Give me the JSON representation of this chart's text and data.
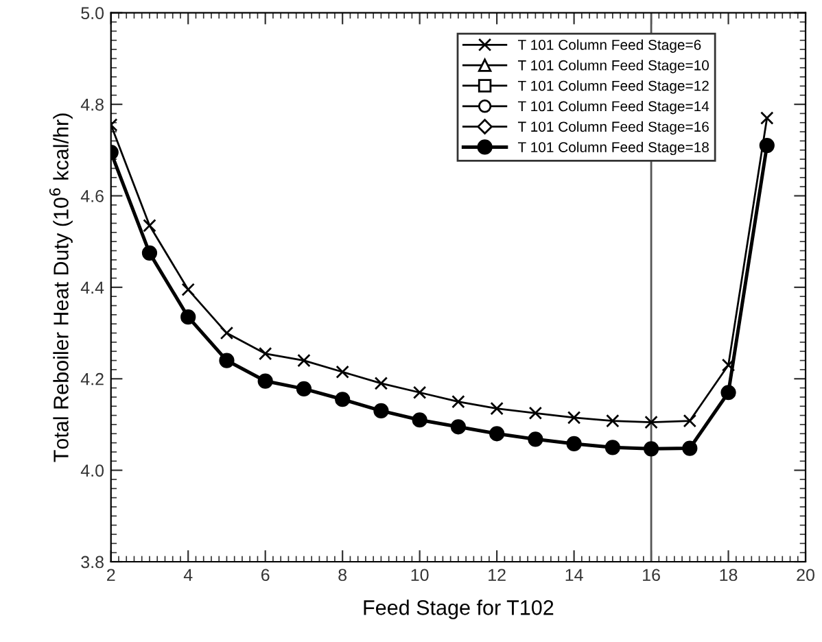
{
  "chart_data": {
    "type": "line",
    "xlabel": "Feed Stage for T102",
    "ylabel": "Total Reboiler Heat Duty (10$^{6}$ kcal/hr)",
    "x": [
      2,
      3,
      4,
      5,
      6,
      7,
      8,
      9,
      10,
      11,
      12,
      13,
      14,
      15,
      16,
      17,
      18,
      19
    ],
    "series": [
      {
        "name": "T 101 Column Feed Stage=6",
        "color": "#000000",
        "marker": "cross",
        "values": [
          4.755,
          4.535,
          4.395,
          4.3,
          4.255,
          4.24,
          4.215,
          4.19,
          4.17,
          4.15,
          4.135,
          4.125,
          4.115,
          4.108,
          4.105,
          4.108,
          4.23,
          4.77
        ]
      },
      {
        "name": "T 101 Column Feed Stage=10",
        "color": "#000000",
        "marker": "triangle",
        "values": [
          null,
          null,
          null,
          null,
          null,
          null,
          null,
          null,
          null,
          null,
          null,
          null,
          null,
          null,
          null,
          null,
          null,
          null
        ]
      },
      {
        "name": "T 101 Column Feed Stage=12",
        "color": "#000000",
        "marker": "square",
        "values": [
          null,
          null,
          null,
          null,
          null,
          null,
          null,
          null,
          null,
          null,
          null,
          null,
          null,
          null,
          null,
          null,
          null,
          null
        ]
      },
      {
        "name": "T 101 Column Feed Stage=14",
        "color": "#000000",
        "marker": "circle",
        "values": [
          null,
          null,
          null,
          null,
          null,
          null,
          null,
          null,
          null,
          null,
          null,
          null,
          null,
          null,
          null,
          null,
          null,
          null
        ]
      },
      {
        "name": "T 101 Column Feed Stage=16",
        "color": "#000000",
        "marker": "diamond",
        "values": [
          null,
          null,
          null,
          null,
          null,
          null,
          null,
          null,
          null,
          null,
          null,
          null,
          null,
          null,
          null,
          null,
          null,
          null
        ]
      },
      {
        "name": "T 101 Column Feed Stage=18",
        "color": "#000000",
        "marker": "circle",
        "values": [
          4.695,
          4.475,
          4.335,
          4.24,
          4.195,
          4.178,
          4.155,
          4.13,
          4.11,
          4.095,
          4.08,
          4.068,
          4.058,
          4.05,
          4.047,
          4.048,
          4.17,
          4.71
        ]
      }
    ],
    "xlim": [
      2,
      20
    ],
    "xticks": [
      2,
      4,
      6,
      8,
      10,
      12,
      14,
      16,
      18,
      20
    ],
    "ylim": [
      3.8,
      5.0
    ],
    "yticks": [
      3.8,
      {
        "value": 4,
        "label": "4.0"
      },
      4.2,
      4.4,
      4.6,
      4.8,
      {
        "value": 5,
        "label": "5.0"
      }
    ],
    "ref_lines": [
      {
        "axis": "x",
        "value": 16,
        "color": "#555555"
      }
    ],
    "grid": false,
    "legend": "top right",
    "line_style": "solid"
  }
}
